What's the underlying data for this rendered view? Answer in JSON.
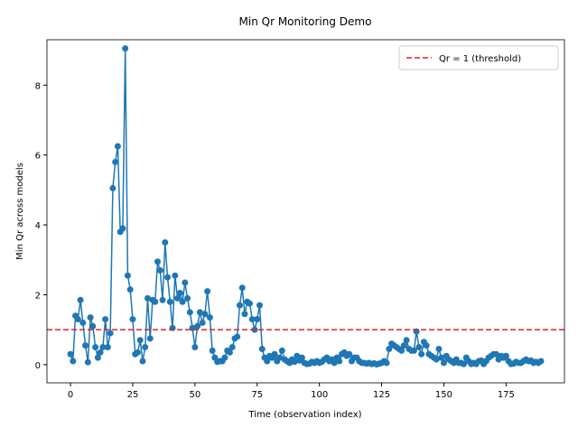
{
  "chart_data": {
    "type": "line",
    "title": "Min Qr Monitoring Demo",
    "x_label": "Time (observation index)",
    "y_label": "Min Qr across models",
    "x": [
      0,
      1,
      2,
      3,
      4,
      5,
      6,
      7,
      8,
      9,
      10,
      11,
      12,
      13,
      14,
      15,
      16,
      17,
      18,
      19,
      20,
      21,
      22,
      23,
      24,
      25,
      26,
      27,
      28,
      29,
      30,
      31,
      32,
      33,
      34,
      35,
      36,
      37,
      38,
      39,
      40,
      41,
      42,
      43,
      44,
      45,
      46,
      47,
      48,
      49,
      50,
      51,
      52,
      53,
      54,
      55,
      56,
      57,
      58,
      59,
      60,
      61,
      62,
      63,
      64,
      65,
      66,
      67,
      68,
      69,
      70,
      71,
      72,
      73,
      74,
      75,
      76,
      77,
      78,
      79,
      80,
      81,
      82,
      83,
      84,
      85,
      86,
      87,
      88,
      89,
      90,
      91,
      92,
      93,
      94,
      95,
      96,
      97,
      98,
      99,
      100,
      101,
      102,
      103,
      104,
      105,
      106,
      107,
      108,
      109,
      110,
      111,
      112,
      113,
      114,
      115,
      116,
      117,
      118,
      119,
      120,
      121,
      122,
      123,
      124,
      125,
      126,
      127,
      128,
      129,
      130,
      131,
      132,
      133,
      134,
      135,
      136,
      137,
      138,
      139,
      140,
      141,
      142,
      143,
      144,
      145,
      146,
      147,
      148,
      149,
      150,
      151,
      152,
      153,
      154,
      155,
      156,
      157,
      158,
      159,
      160,
      161,
      162,
      163,
      164,
      165,
      166,
      167,
      168,
      169,
      170,
      171,
      172,
      173,
      174,
      175,
      176,
      177,
      178,
      179,
      180,
      181,
      182,
      183,
      184,
      185,
      186,
      187,
      188,
      189
    ],
    "series": [
      {
        "color": "#1f77b4",
        "values": [
          0.3,
          0.1,
          1.4,
          1.3,
          1.85,
          1.2,
          0.55,
          0.07,
          1.35,
          1.1,
          0.5,
          0.2,
          0.35,
          0.5,
          1.3,
          0.5,
          0.9,
          5.05,
          5.8,
          6.25,
          3.8,
          3.9,
          9.05,
          2.55,
          2.15,
          1.3,
          0.3,
          0.35,
          0.7,
          0.1,
          0.5,
          1.9,
          0.75,
          1.85,
          1.8,
          2.95,
          2.7,
          1.85,
          3.5,
          2.5,
          1.8,
          1.05,
          2.55,
          1.9,
          2.05,
          1.8,
          2.35,
          1.9,
          1.5,
          1.05,
          0.5,
          1.1,
          1.5,
          1.2,
          1.45,
          2.1,
          1.35,
          0.4,
          0.2,
          0.08,
          0.1,
          0.1,
          0.2,
          0.4,
          0.35,
          0.5,
          0.75,
          0.8,
          1.7,
          2.2,
          1.45,
          1.8,
          1.75,
          1.3,
          1.0,
          1.3,
          1.7,
          0.45,
          0.2,
          0.1,
          0.25,
          0.2,
          0.3,
          0.1,
          0.2,
          0.4,
          0.15,
          0.1,
          0.05,
          0.15,
          0.08,
          0.25,
          0.12,
          0.2,
          0.05,
          0.02,
          0.03,
          0.08,
          0.05,
          0.1,
          0.05,
          0.08,
          0.15,
          0.2,
          0.1,
          0.15,
          0.05,
          0.2,
          0.1,
          0.3,
          0.35,
          0.25,
          0.3,
          0.1,
          0.2,
          0.2,
          0.1,
          0.05,
          0.05,
          0.03,
          0.05,
          0.02,
          0.04,
          0.01,
          0.03,
          0.05,
          0.1,
          0.05,
          0.45,
          0.6,
          0.55,
          0.5,
          0.45,
          0.4,
          0.55,
          0.7,
          0.45,
          0.4,
          0.4,
          0.95,
          0.5,
          0.3,
          0.65,
          0.55,
          0.3,
          0.25,
          0.2,
          0.15,
          0.45,
          0.2,
          0.05,
          0.25,
          0.15,
          0.1,
          0.05,
          0.15,
          0.05,
          0.05,
          0.02,
          0.2,
          0.1,
          0.02,
          0.05,
          0.02,
          0.1,
          0.12,
          0.02,
          0.1,
          0.2,
          0.25,
          0.3,
          0.3,
          0.15,
          0.25,
          0.2,
          0.25,
          0.1,
          0.02,
          0.03,
          0.08,
          0.05,
          0.05,
          0.1,
          0.15,
          0.1,
          0.12,
          0.05,
          0.08,
          0.05,
          0.1
        ]
      }
    ],
    "threshold": {
      "value": 1,
      "name": "Qr = 1 (threshold)",
      "color": "#d62728"
    },
    "xlim": [
      -9.45,
      198.45
    ],
    "ylim": [
      -0.52,
      9.3
    ],
    "xticks": [
      0,
      25,
      50,
      75,
      100,
      125,
      150,
      175
    ],
    "yticks": [
      0,
      2,
      4,
      6,
      8
    ],
    "legend": "upper right"
  }
}
